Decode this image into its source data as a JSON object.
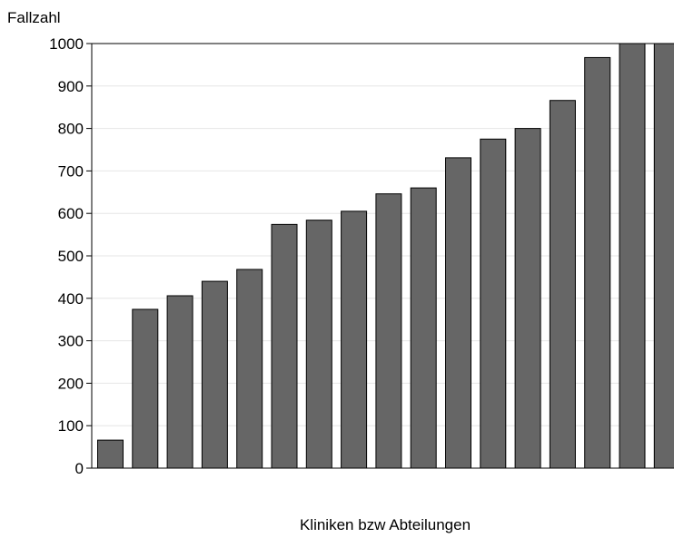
{
  "chart_data": {
    "type": "bar",
    "title": "",
    "ylabel": "Fallzahl",
    "xlabel": "Kliniken bzw Abteilungen",
    "ylim": [
      0,
      1000
    ],
    "yticks": [
      0,
      100,
      200,
      300,
      400,
      500,
      600,
      700,
      800,
      900,
      1000
    ],
    "grid": true,
    "legend": "none",
    "values": [
      66,
      374,
      406,
      440,
      468,
      574,
      584,
      605,
      646,
      660,
      731,
      775,
      800,
      866,
      967,
      1000,
      1000
    ],
    "colors": {
      "bar_fill": "#666666",
      "bar_stroke": "#000000",
      "grid": "#e6e6e6"
    }
  }
}
